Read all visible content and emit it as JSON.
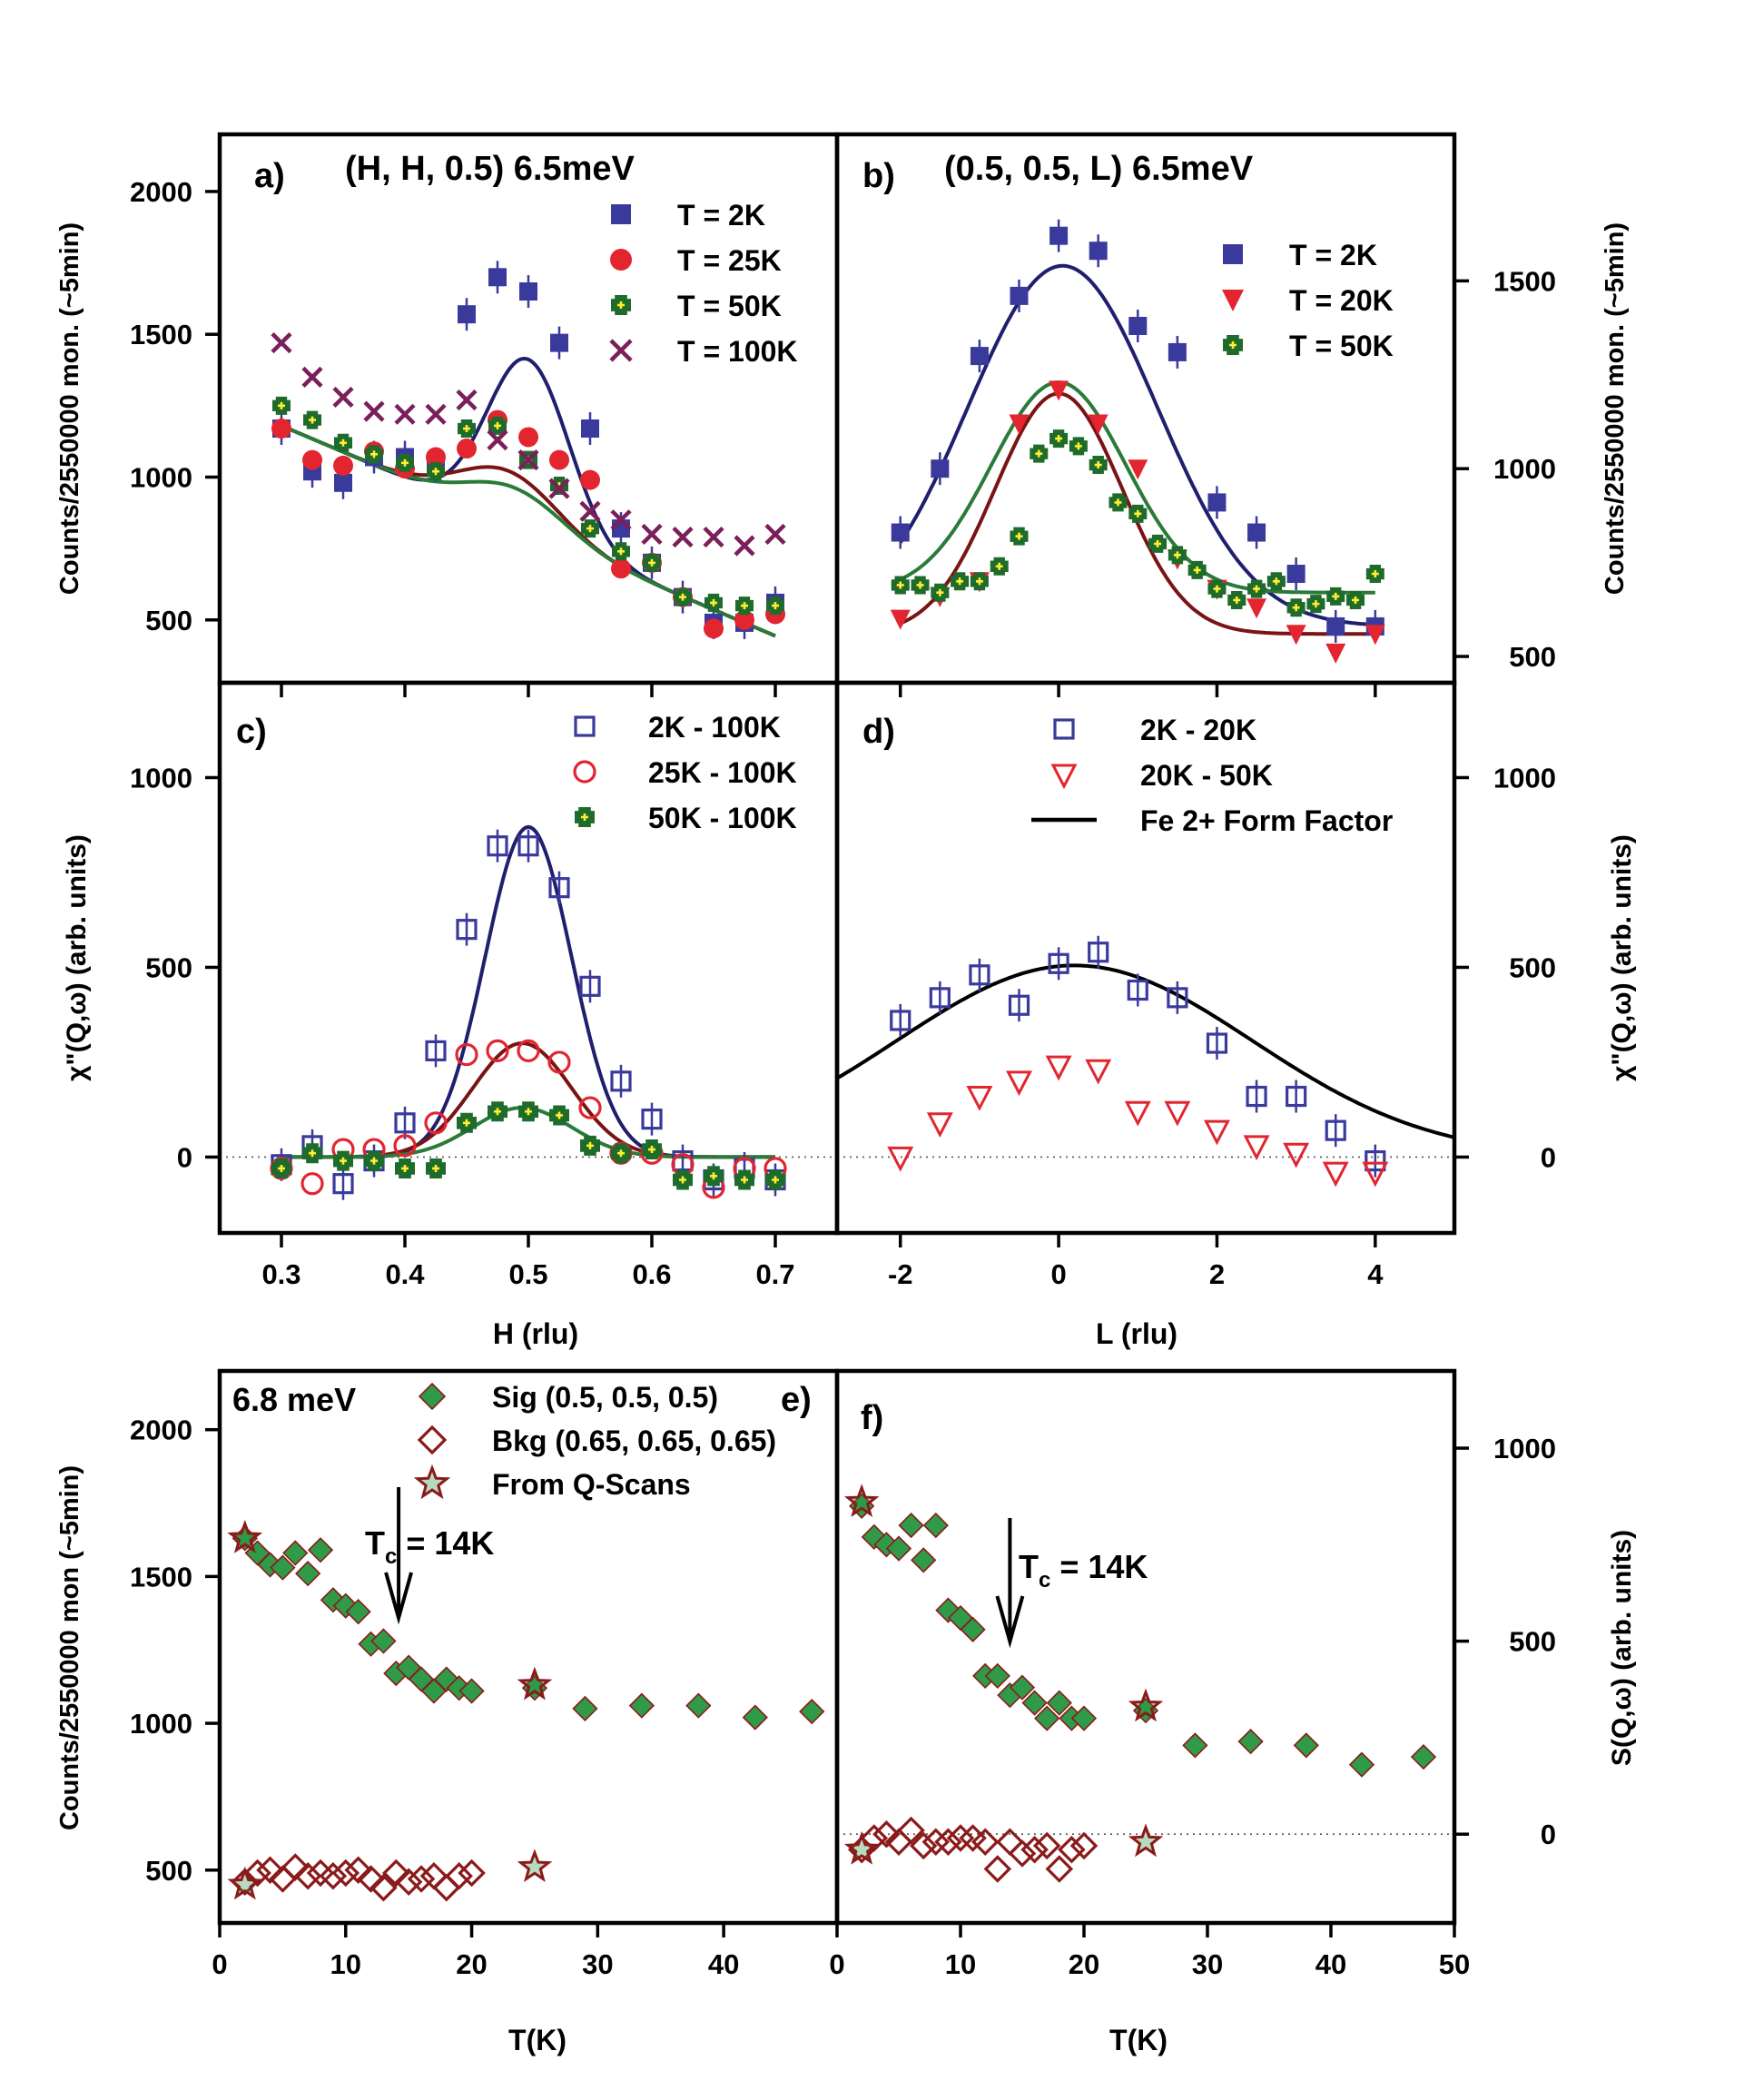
{
  "colors": {
    "blue": "#3a3a9c",
    "blueDark": "#1f1f6e",
    "red": "#e2252f",
    "redDark": "#7a1414",
    "green": "#1e6b2c",
    "greenLine": "#2a7a38",
    "yellow": "#ffef2e",
    "cross": "#7a1f5a",
    "magenta": "#a0306e",
    "diamond": "#2f9a48",
    "diamondEdge": "#8b1a1a"
  },
  "chart_data": [
    {
      "id": "a",
      "type": "scatter",
      "panel_label": "a)",
      "title": "(H, H, 0.5) 6.5meV",
      "ylabel": "Counts/2550000 mon. (~5min)",
      "xlim": [
        0.25,
        0.75
      ],
      "ylim": [
        280,
        2200
      ],
      "yticks": [
        500,
        1000,
        1500,
        2000
      ],
      "series": [
        {
          "name": "T = 2K",
          "marker": "square",
          "color": "blue",
          "x": [
            0.3,
            0.325,
            0.35,
            0.375,
            0.4,
            0.425,
            0.45,
            0.475,
            0.5,
            0.525,
            0.55,
            0.575,
            0.6,
            0.625,
            0.65,
            0.675,
            0.7
          ],
          "y": [
            1170,
            1020,
            980,
            1070,
            1070,
            1040,
            1570,
            1700,
            1650,
            1470,
            1170,
            820,
            700,
            580,
            490,
            490,
            560
          ],
          "fit": {
            "baseline": [
              1180,
              -1840
            ],
            "amp": 600,
            "center": 0.5,
            "sigma": 0.033
          }
        },
        {
          "name": "T = 25K",
          "marker": "circle",
          "color": "red",
          "x": [
            0.3,
            0.325,
            0.35,
            0.375,
            0.4,
            0.425,
            0.45,
            0.475,
            0.5,
            0.525,
            0.55,
            0.575,
            0.6,
            0.625,
            0.65,
            0.675,
            0.7
          ],
          "y": [
            1170,
            1060,
            1040,
            1090,
            1030,
            1070,
            1100,
            1200,
            1140,
            1060,
            990,
            680,
            700,
            580,
            470,
            500,
            520
          ],
          "fit": {
            "baseline": [
              1180,
              -1840
            ],
            "amp": 180,
            "center": 0.485,
            "sigma": 0.04
          }
        },
        {
          "name": "T = 50K",
          "marker": "greek-cross",
          "color": "green",
          "x": [
            0.3,
            0.325,
            0.35,
            0.375,
            0.4,
            0.425,
            0.45,
            0.475,
            0.5,
            0.525,
            0.55,
            0.575,
            0.6,
            0.625,
            0.65,
            0.675,
            0.7
          ],
          "y": [
            1250,
            1200,
            1120,
            1080,
            1050,
            1020,
            1170,
            1180,
            1060,
            970,
            820,
            740,
            700,
            580,
            560,
            550,
            550
          ],
          "fit": {
            "baseline": [
              1180,
              -1840
            ],
            "amp": 130,
            "center": 0.49,
            "sigma": 0.04
          }
        },
        {
          "name": "T = 100K",
          "marker": "x",
          "color": "cross",
          "x": [
            0.3,
            0.325,
            0.35,
            0.375,
            0.4,
            0.425,
            0.45,
            0.475,
            0.5,
            0.525,
            0.55,
            0.575,
            0.6,
            0.625,
            0.65,
            0.675,
            0.7
          ],
          "y": [
            1470,
            1350,
            1280,
            1230,
            1220,
            1220,
            1270,
            1130,
            1060,
            960,
            880,
            850,
            800,
            790,
            790,
            760,
            800
          ]
        }
      ]
    },
    {
      "id": "b",
      "type": "scatter",
      "panel_label": "b)",
      "title": "(0.5, 0.5, L) 6.5meV",
      "ylabel": "Counts/2550000 mon. (~5min)",
      "xlim": [
        -2.8,
        5.0
      ],
      "ylim": [
        430,
        1890
      ],
      "yticks": [
        500,
        1000,
        1500
      ],
      "series": [
        {
          "name": "T = 2K",
          "marker": "square",
          "color": "blue",
          "x": [
            -2,
            -1.5,
            -1,
            -0.5,
            0,
            0.5,
            1,
            1.5,
            2,
            2.5,
            3,
            3.5,
            4
          ],
          "y": [
            830,
            1000,
            1300,
            1460,
            1620,
            1580,
            1380,
            1310,
            910,
            830,
            720,
            580,
            580
          ],
          "fit": {
            "baseline": 580,
            "amp": 960,
            "center": 0.05,
            "sigma": 1.2
          }
        },
        {
          "name": "T = 20K",
          "marker": "triangle-down",
          "color": "red",
          "x": [
            -2,
            -1.5,
            -1,
            -0.5,
            0,
            0.5,
            1,
            1.5,
            2,
            2.5,
            3,
            3.5,
            4
          ],
          "y": [
            600,
            660,
            700,
            1120,
            1210,
            1120,
            1000,
            760,
            680,
            630,
            560,
            510,
            560
          ],
          "fit": {
            "baseline": 560,
            "amp": 640,
            "center": 0.0,
            "sigma": 0.8
          }
        },
        {
          "name": "T = 50K",
          "marker": "greek-cross",
          "color": "green",
          "x": [
            -2.0,
            -1.75,
            -1.5,
            -1.25,
            -1.0,
            -0.75,
            -0.5,
            -0.25,
            0.0,
            0.25,
            0.5,
            0.75,
            1.0,
            1.25,
            1.5,
            1.75,
            2.0,
            2.25,
            2.5,
            2.75,
            3.0,
            3.25,
            3.5,
            3.75,
            4.0
          ],
          "y": [
            690,
            690,
            670,
            700,
            700,
            740,
            820,
            1040,
            1080,
            1060,
            1010,
            910,
            880,
            800,
            770,
            730,
            680,
            650,
            680,
            700,
            630,
            640,
            660,
            650,
            720
          ],
          "fit": {
            "baseline": 670,
            "amp": 560,
            "center": 0.0,
            "sigma": 0.85
          }
        }
      ]
    },
    {
      "id": "c",
      "type": "scatter",
      "panel_label": "c)",
      "ylabel": "χ\"(Q,ω) (arb. units)",
      "xlabel": "H (rlu)",
      "xlim": [
        0.25,
        0.75
      ],
      "ylim": [
        -200,
        1250
      ],
      "yticks": [
        0,
        500,
        1000
      ],
      "xticks": [
        0.3,
        0.4,
        0.5,
        0.6,
        0.7
      ],
      "xticklabels": [
        "0.3",
        "0.4",
        "0.5",
        "0.6",
        "0.7"
      ],
      "series": [
        {
          "name": "2K - 100K",
          "marker": "open-square",
          "color": "blue",
          "x": [
            0.3,
            0.325,
            0.35,
            0.375,
            0.4,
            0.425,
            0.45,
            0.475,
            0.5,
            0.525,
            0.55,
            0.575,
            0.6,
            0.625,
            0.65,
            0.675,
            0.7
          ],
          "y": [
            -20,
            30,
            -70,
            -10,
            90,
            280,
            600,
            820,
            820,
            710,
            450,
            200,
            100,
            -10,
            -60,
            -30,
            -60
          ],
          "fit": {
            "baseline": 0,
            "amp": 870,
            "center": 0.5,
            "sigma": 0.035
          }
        },
        {
          "name": "25K - 100K",
          "marker": "open-circle",
          "color": "red",
          "x": [
            0.3,
            0.325,
            0.35,
            0.375,
            0.4,
            0.425,
            0.45,
            0.475,
            0.5,
            0.525,
            0.55,
            0.575,
            0.6,
            0.625,
            0.65,
            0.675,
            0.7
          ],
          "y": [
            -30,
            -70,
            20,
            20,
            30,
            90,
            270,
            280,
            280,
            250,
            130,
            10,
            10,
            -20,
            -80,
            -30,
            -30
          ],
          "fit": {
            "baseline": 0,
            "amp": 300,
            "center": 0.495,
            "sigma": 0.04
          }
        },
        {
          "name": "50K - 100K",
          "marker": "greek-cross",
          "color": "green",
          "x": [
            0.3,
            0.325,
            0.35,
            0.375,
            0.4,
            0.425,
            0.45,
            0.475,
            0.5,
            0.525,
            0.55,
            0.575,
            0.6,
            0.625,
            0.65,
            0.675,
            0.7
          ],
          "y": [
            -30,
            10,
            -10,
            -10,
            -30,
            -30,
            90,
            120,
            120,
            110,
            30,
            10,
            20,
            -60,
            -50,
            -60,
            -60
          ],
          "fit": {
            "baseline": 0,
            "amp": 130,
            "center": 0.495,
            "sigma": 0.04
          }
        }
      ]
    },
    {
      "id": "d",
      "type": "scatter",
      "panel_label": "d)",
      "ylabel": "χ\"(Q,ω) (arb. units)",
      "xlabel": "L (rlu)",
      "xlim": [
        -2.8,
        5.0
      ],
      "ylim": [
        -200,
        1250
      ],
      "yticks": [
        0,
        500,
        1000
      ],
      "xticks": [
        -2,
        0,
        2,
        4
      ],
      "xticklabels": [
        "-2",
        "0",
        "2",
        "4"
      ],
      "series": [
        {
          "name": "2K - 20K",
          "marker": "open-square",
          "color": "blue",
          "x": [
            -2,
            -1.5,
            -1,
            -0.5,
            0,
            0.5,
            1,
            1.5,
            2,
            2.5,
            3,
            3.5,
            4
          ],
          "y": [
            360,
            420,
            480,
            400,
            510,
            540,
            440,
            420,
            300,
            160,
            160,
            70,
            -10
          ]
        },
        {
          "name": "20K - 50K",
          "marker": "open-triangle-down",
          "color": "red",
          "x": [
            -2,
            -1.5,
            -1,
            -0.5,
            0,
            0.5,
            1,
            1.5,
            2,
            2.5,
            3,
            3.5,
            4
          ],
          "y": [
            0,
            90,
            160,
            200,
            240,
            230,
            120,
            120,
            70,
            30,
            10,
            -40,
            -40
          ]
        },
        {
          "name": "Fe 2+ Form Factor",
          "marker": "line",
          "color": "black",
          "fit": {
            "baseline": 0,
            "amp": 505,
            "center": 0.2,
            "sigma": 2.25
          }
        }
      ]
    },
    {
      "id": "e",
      "type": "scatter",
      "panel_label": "e)",
      "title": "6.8 meV",
      "ylabel": "Counts/2550000 mon (~5min)",
      "xlabel": "T(K)",
      "xlim": [
        0,
        49
      ],
      "ylim": [
        320,
        2200
      ],
      "yticks": [
        500,
        1000,
        1500,
        2000
      ],
      "xticks": [
        0,
        10,
        20,
        30,
        40
      ],
      "xticklabels": [
        "0",
        "10",
        "20",
        "30",
        "40"
      ],
      "annotation": "T",
      "annotation_sub": "c",
      "annotation_rest": " = 14K",
      "series": [
        {
          "name": "Sig (0.5, 0.5, 0.5)",
          "marker": "diamond",
          "x": [
            2,
            3,
            4,
            5,
            6,
            7,
            8,
            9,
            10,
            11,
            12,
            13,
            14,
            15,
            16,
            17,
            18,
            19,
            20,
            25,
            29,
            33.5,
            38,
            42.5,
            47
          ],
          "y": [
            1630,
            1580,
            1540,
            1530,
            1580,
            1510,
            1590,
            1420,
            1400,
            1380,
            1270,
            1280,
            1170,
            1190,
            1150,
            1110,
            1150,
            1120,
            1110,
            1120,
            1050,
            1060,
            1060,
            1020,
            1040
          ]
        },
        {
          "name": "Bkg (0.65, 0.65, 0.65)",
          "marker": "open-diamond",
          "x": [
            2,
            3,
            4,
            5,
            6,
            7,
            8,
            9,
            10,
            11,
            12,
            13,
            14,
            15,
            16,
            17,
            18,
            19,
            20
          ],
          "y": [
            460,
            490,
            500,
            470,
            510,
            480,
            490,
            480,
            490,
            500,
            470,
            440,
            490,
            460,
            470,
            480,
            440,
            480,
            490
          ]
        },
        {
          "name": "From Q-Scans",
          "marker": "star",
          "x": [
            2,
            25,
            25,
            2
          ],
          "y": [
            1630,
            1130,
            510,
            450
          ]
        }
      ]
    },
    {
      "id": "f",
      "type": "scatter",
      "panel_label": "f)",
      "ylabel": "S(Q,ω) (arb. units)",
      "xlabel": "T(K)",
      "xlim": [
        0,
        50
      ],
      "ylim": [
        -230,
        1200
      ],
      "yticks": [
        0,
        500,
        1000
      ],
      "xticks": [
        0,
        10,
        20,
        30,
        40,
        50
      ],
      "xticklabels": [
        "0",
        "10",
        "20",
        "30",
        "40",
        "50"
      ],
      "annotation": "T",
      "annotation_sub": "c",
      "annotation_rest": " = 14K",
      "series": [
        {
          "name": "Sig",
          "marker": "diamond",
          "x": [
            2,
            3,
            4,
            5,
            6,
            7,
            8,
            9,
            10,
            11,
            12,
            13,
            14,
            15,
            16,
            17,
            18,
            19,
            20,
            25,
            29,
            33.5,
            38,
            42.5,
            47.5
          ],
          "y": [
            850,
            770,
            750,
            740,
            800,
            710,
            800,
            580,
            560,
            530,
            410,
            410,
            360,
            380,
            340,
            300,
            340,
            300,
            300,
            320,
            230,
            240,
            230,
            180,
            200
          ]
        },
        {
          "name": "Bkg",
          "marker": "open-diamond",
          "x": [
            2,
            3,
            4,
            5,
            6,
            7,
            8,
            9,
            10,
            11,
            12,
            13,
            14,
            15,
            16,
            17,
            18,
            19,
            20
          ],
          "y": [
            -40,
            -10,
            0,
            -20,
            10,
            -30,
            -20,
            -20,
            -10,
            -10,
            -20,
            -90,
            -20,
            -50,
            -40,
            -30,
            -90,
            -40,
            -30
          ]
        },
        {
          "name": "From Q-Scans",
          "marker": "star",
          "x": [
            2,
            25,
            25,
            2
          ],
          "y": [
            860,
            330,
            -20,
            -40
          ]
        }
      ]
    }
  ]
}
